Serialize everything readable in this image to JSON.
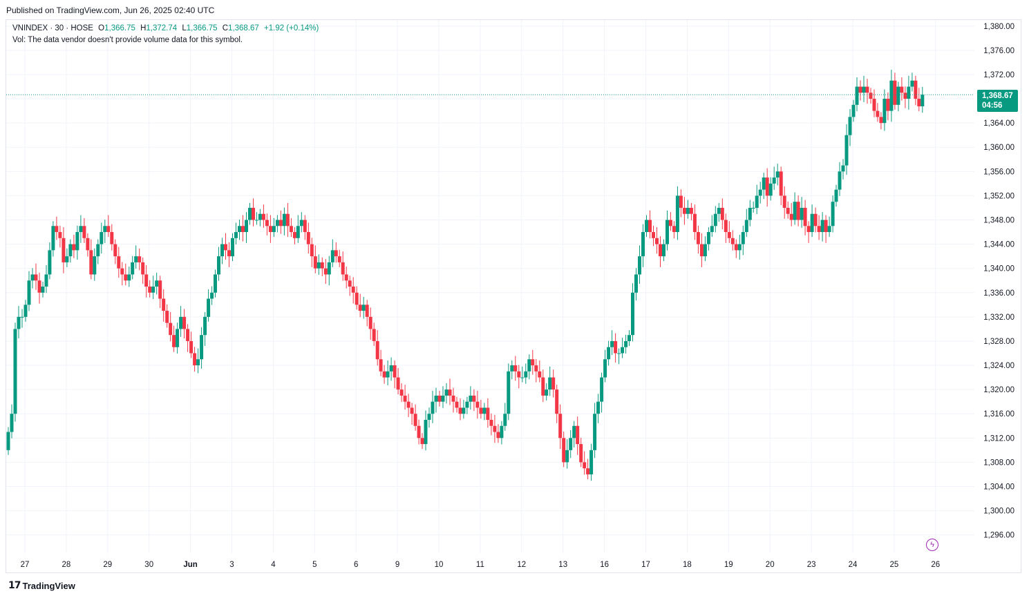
{
  "header": {
    "published": "Published on TradingView.com, Jun 26, 2025 02:40 UTC"
  },
  "legend": {
    "symbol": "VNINDEX · 30 · HOSE",
    "o_label": "O",
    "o_value": "1,366.75",
    "h_label": "H",
    "h_value": "1,372.74",
    "l_label": "L",
    "l_value": "1,366.75",
    "c_label": "C",
    "c_value": "1,368.67",
    "change": "+1.92 (+0.14%)",
    "vol_text": "Vol: The data vendor doesn't provide volume data for this symbol."
  },
  "last_price": {
    "value": "1,368.67",
    "countdown": "04:56"
  },
  "footer": {
    "brand": "TradingView"
  },
  "colors": {
    "up": "#089981",
    "down": "#f23645",
    "grid": "#f0f3fa",
    "accent": "#9c27b0"
  },
  "icons": {
    "logo": "tradingview-logo-icon",
    "flash": "lightning-icon"
  },
  "chart_data": {
    "type": "candlestick",
    "title": "VNINDEX · 30 · HOSE",
    "ylim": [
      1293,
      1381
    ],
    "y_ticks": [
      "1,296.00",
      "1,300.00",
      "1,304.00",
      "1,308.00",
      "1,312.00",
      "1,316.00",
      "1,320.00",
      "1,324.00",
      "1,328.00",
      "1,332.00",
      "1,336.00",
      "1,340.00",
      "1,344.00",
      "1,348.00",
      "1,352.00",
      "1,356.00",
      "1,360.00",
      "1,364.00",
      "1,368.00",
      "1,372.00",
      "1,376.00",
      "1,380.00"
    ],
    "x_labels": [
      "27",
      "28",
      "29",
      "30",
      "Jun",
      "3",
      "4",
      "5",
      "6",
      "9",
      "10",
      "11",
      "12",
      "13",
      "16",
      "17",
      "18",
      "19",
      "20",
      "23",
      "24",
      "25",
      "26"
    ],
    "sessions": [
      {
        "label": "27",
        "closes": [
          1313,
          1316,
          1330,
          1332,
          1332,
          1334,
          1338,
          1339,
          1338,
          1336,
          1337,
          1339
        ]
      },
      {
        "label": "28",
        "closes": [
          1343,
          1347,
          1346,
          1345,
          1341,
          1342,
          1344,
          1343,
          1346,
          1347,
          1345,
          1343
        ]
      },
      {
        "label": "29",
        "closes": [
          1339,
          1342,
          1344,
          1346,
          1347,
          1346,
          1344,
          1342,
          1340,
          1339,
          1338,
          1339
        ]
      },
      {
        "label": "30",
        "closes": [
          1341,
          1342,
          1341,
          1339,
          1337,
          1336,
          1337,
          1338,
          1335,
          1333,
          1331,
          1329
        ]
      },
      {
        "label": "Jun",
        "closes": [
          1327,
          1330,
          1332,
          1330,
          1328,
          1326,
          1324,
          1325,
          1329,
          1332,
          1335,
          1336
        ]
      },
      {
        "label": "3",
        "closes": [
          1339,
          1342,
          1344,
          1343,
          1342,
          1345,
          1346,
          1347,
          1346,
          1348,
          1350,
          1348
        ]
      },
      {
        "label": "4",
        "closes": [
          1348,
          1349,
          1348,
          1347,
          1346,
          1347,
          1348,
          1347,
          1349,
          1347,
          1346,
          1345
        ]
      },
      {
        "label": "5",
        "closes": [
          1347,
          1348,
          1346,
          1344,
          1342,
          1340,
          1341,
          1340,
          1339,
          1341,
          1343,
          1342
        ]
      },
      {
        "label": "6",
        "closes": [
          1341,
          1339,
          1338,
          1337,
          1336,
          1334,
          1333,
          1334,
          1332,
          1330,
          1328,
          1325
        ]
      },
      {
        "label": "9",
        "closes": [
          1323,
          1322,
          1323,
          1324,
          1322,
          1320,
          1319,
          1318,
          1317,
          1316,
          1314,
          1312
        ]
      },
      {
        "label": "10",
        "closes": [
          1311,
          1315,
          1316,
          1318,
          1319,
          1318,
          1319,
          1320,
          1319,
          1318,
          1317,
          1316
        ]
      },
      {
        "label": "11",
        "closes": [
          1317,
          1318,
          1319,
          1318,
          1317,
          1316,
          1317,
          1315,
          1314,
          1313,
          1312,
          1314
        ]
      },
      {
        "label": "12",
        "closes": [
          1316,
          1323,
          1324,
          1323,
          1322,
          1322,
          1323,
          1325,
          1324,
          1323,
          1322,
          1319
        ]
      },
      {
        "label": "13",
        "closes": [
          1320,
          1322,
          1320,
          1316,
          1312,
          1308,
          1310,
          1312,
          1314,
          1311,
          1308,
          1307
        ]
      },
      {
        "label": "16",
        "closes": [
          1306,
          1310,
          1316,
          1318,
          1322,
          1325,
          1327,
          1328,
          1326,
          1326,
          1327,
          1328
        ]
      },
      {
        "label": "17",
        "closes": [
          1329,
          1336,
          1339,
          1342,
          1346,
          1348,
          1346,
          1345,
          1344,
          1342,
          1344,
          1348
        ]
      },
      {
        "label": "18",
        "closes": [
          1347,
          1346,
          1352,
          1350,
          1349,
          1350,
          1349,
          1346,
          1344,
          1342,
          1344,
          1346
        ]
      },
      {
        "label": "19",
        "closes": [
          1347,
          1349,
          1350,
          1348,
          1346,
          1345,
          1344,
          1343,
          1344,
          1346,
          1348,
          1350
        ]
      },
      {
        "label": "20",
        "closes": [
          1350,
          1352,
          1353,
          1355,
          1352,
          1354,
          1355,
          1356,
          1352,
          1350,
          1349,
          1348
        ]
      },
      {
        "label": "23",
        "closes": [
          1351,
          1348,
          1350,
          1347,
          1346,
          1349,
          1347,
          1346,
          1348,
          1346,
          1347,
          1351
        ]
      },
      {
        "label": "24",
        "closes": [
          1353,
          1356,
          1357,
          1362,
          1365,
          1367,
          1370,
          1369,
          1370,
          1369,
          1368,
          1366
        ]
      },
      {
        "label": "25",
        "closes": [
          1365,
          1364,
          1368,
          1366,
          1371,
          1367,
          1370,
          1369,
          1368,
          1370,
          1371,
          1368
        ]
      },
      {
        "label": "26",
        "closes": [
          1366.75,
          1368.67
        ]
      }
    ]
  }
}
